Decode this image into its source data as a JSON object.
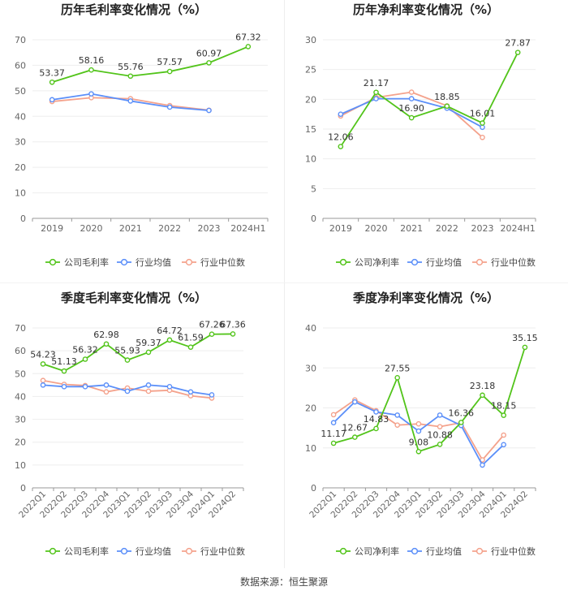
{
  "source": "数据来源：恒生聚源",
  "colors": {
    "company": "#52c41a",
    "avg": "#5b8ff9",
    "median": "#f4a28c"
  },
  "legend_labels": {
    "gross": [
      "公司毛利率",
      "行业均值",
      "行业中位数"
    ],
    "net": [
      "公司净利率",
      "行业均值",
      "行业中位数"
    ]
  },
  "chart_data": [
    {
      "type": "line",
      "title": "历年毛利率变化情况（%）",
      "categories": [
        "2019",
        "2020",
        "2021",
        "2022",
        "2023",
        "2024H1"
      ],
      "ylim": [
        0,
        70
      ],
      "yticks": [
        0,
        10,
        20,
        30,
        40,
        50,
        60,
        70
      ],
      "grid": true,
      "legend": "bottom",
      "series": [
        {
          "name": "公司毛利率",
          "values": [
            53.37,
            58.16,
            55.76,
            57.57,
            60.97,
            67.32
          ],
          "labels": [
            "53.37",
            "58.16",
            "55.76",
            "57.57",
            "60.97",
            "67.32"
          ]
        },
        {
          "name": "行业均值",
          "values": [
            46.5,
            48.8,
            46.0,
            43.6,
            42.3,
            null
          ]
        },
        {
          "name": "行业中位数",
          "values": [
            45.8,
            47.3,
            46.9,
            44.2,
            42.4,
            null
          ]
        }
      ]
    },
    {
      "type": "line",
      "title": "历年净利率变化情况（%）",
      "categories": [
        "2019",
        "2020",
        "2021",
        "2022",
        "2023",
        "2024H1"
      ],
      "ylim": [
        0,
        30
      ],
      "yticks": [
        0,
        5,
        10,
        15,
        20,
        25,
        30
      ],
      "grid": true,
      "legend": "bottom",
      "series": [
        {
          "name": "公司净利率",
          "values": [
            12.06,
            21.17,
            16.9,
            18.85,
            16.01,
            27.87
          ],
          "labels": [
            "12.06",
            "21.17",
            "16.90",
            "18.85",
            "16.01",
            "27.87"
          ]
        },
        {
          "name": "行业均值",
          "values": [
            17.5,
            20.1,
            20.1,
            18.5,
            15.3,
            null
          ]
        },
        {
          "name": "行业中位数",
          "values": [
            17.2,
            20.3,
            21.2,
            18.9,
            13.6,
            null
          ]
        }
      ]
    },
    {
      "type": "line",
      "title": "季度毛利率变化情况（%）",
      "categories": [
        "2022Q1",
        "2022Q2",
        "2022Q3",
        "2022Q4",
        "2023Q1",
        "2023Q2",
        "2023Q3",
        "2023Q4",
        "2024Q1",
        "2024Q2"
      ],
      "ylim": [
        0,
        70
      ],
      "yticks": [
        0,
        10,
        20,
        30,
        40,
        50,
        60,
        70
      ],
      "grid": true,
      "legend": "bottom",
      "series": [
        {
          "name": "公司毛利率",
          "values": [
            54.23,
            51.13,
            56.32,
            62.98,
            55.93,
            59.37,
            64.72,
            61.59,
            67.26,
            67.36
          ],
          "labels": [
            "54.23",
            "51.13",
            "56.32",
            "62.98",
            "55.93",
            "59.37",
            "64.72",
            "61.59",
            "67.26",
            "67.36"
          ]
        },
        {
          "name": "行业均值",
          "values": [
            45.0,
            44.3,
            44.3,
            45.0,
            42.3,
            45.0,
            44.3,
            42.0,
            40.7,
            null
          ]
        },
        {
          "name": "行业中位数",
          "values": [
            47.0,
            45.3,
            44.8,
            42.0,
            43.7,
            42.3,
            42.7,
            40.3,
            39.3,
            null
          ]
        }
      ]
    },
    {
      "type": "line",
      "title": "季度净利率变化情况（%）",
      "categories": [
        "2022Q1",
        "2022Q2",
        "2022Q3",
        "2022Q4",
        "2023Q1",
        "2023Q2",
        "2023Q3",
        "2023Q4",
        "2024Q1",
        "2024Q2"
      ],
      "ylim": [
        0,
        40
      ],
      "yticks": [
        0,
        10,
        20,
        30,
        40
      ],
      "grid": true,
      "legend": "bottom",
      "series": [
        {
          "name": "公司净利率",
          "values": [
            11.17,
            12.67,
            14.83,
            27.55,
            9.08,
            10.88,
            16.36,
            23.18,
            18.15,
            35.15
          ],
          "labels": [
            "11.17",
            "12.67",
            "14.83",
            "27.55",
            "9.08",
            "10.88",
            "16.36",
            "23.18",
            "18.15",
            "35.15"
          ]
        },
        {
          "name": "行业均值",
          "values": [
            16.3,
            21.5,
            19.0,
            18.2,
            14.2,
            18.2,
            15.6,
            5.7,
            10.8,
            null
          ]
        },
        {
          "name": "行业中位数",
          "values": [
            18.3,
            22.0,
            19.3,
            15.7,
            16.0,
            15.3,
            16.3,
            7.0,
            13.2,
            null
          ]
        }
      ]
    }
  ]
}
